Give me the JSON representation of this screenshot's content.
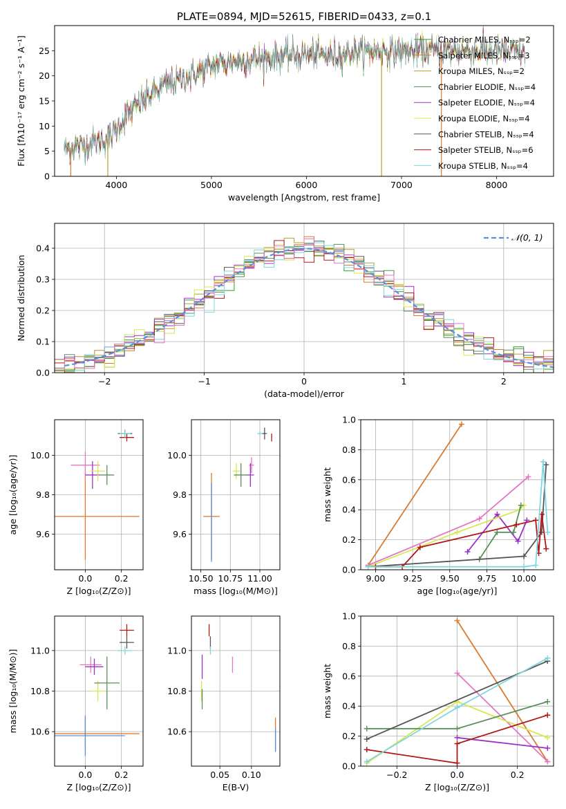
{
  "title": "PLATE=0894, MJD=52615, FIBERID=0433, z=0.1",
  "colors": {
    "Chabrier MILES": "#2ca02c",
    "Salpeter MILES": "#d62728",
    "Kroupa MILES": "#b5a12a",
    "Chabrier ELODIE": "#5a8f5a",
    "Salpeter ELODIE": "#9b30c9",
    "Kroupa ELODIE": "#d6e84e",
    "Chabrier STELIB": "#555555",
    "Salpeter STELIB": "#b01818",
    "Kroupa STELIB": "#7fd6de",
    "pink": "#e377c2",
    "orange": "#d97a30",
    "gauss": "#5b8fdc"
  },
  "chart_data": [
    {
      "type": "line",
      "name": "spectrum",
      "xlabel": "wavelength [Angstrom, rest frame]",
      "ylabel": "Flux [fλ10⁻¹⁷ erg cm⁻² s⁻¹ A⁻¹]",
      "xlim": [
        3350,
        8600
      ],
      "ylim": [
        0,
        30
      ],
      "xticks": [
        "4000",
        "5000",
        "6000",
        "7000",
        "8000"
      ],
      "yticks": [
        "0",
        "5",
        "10",
        "15",
        "20",
        "25"
      ],
      "legend": "upper right",
      "series": [
        {
          "name": "Chabrier MILES, Nₛₛₚ=2"
        },
        {
          "name": "Salpeter MILES, Nₛₛₚ=3"
        },
        {
          "name": "Kroupa MILES, Nₛₛₚ=2"
        },
        {
          "name": "Chabrier ELODIE, Nₛₛₚ=4"
        },
        {
          "name": "Salpeter ELODIE, Nₛₛₚ=4"
        },
        {
          "name": "Kroupa ELODIE, Nₛₛₚ=4"
        },
        {
          "name": "Chabrier STELIB, Nₛₛₚ=4"
        },
        {
          "name": "Salpeter STELIB, Nₛₛₚ=6"
        },
        {
          "name": "Kroupa STELIB, Nₛₛₚ=4"
        }
      ],
      "continuum": [
        [
          3450,
          5.5
        ],
        [
          3600,
          6
        ],
        [
          3850,
          7
        ],
        [
          3950,
          8
        ],
        [
          4100,
          12
        ],
        [
          4300,
          15.5
        ],
        [
          4500,
          18
        ],
        [
          4700,
          19.5
        ],
        [
          4900,
          21
        ],
        [
          5100,
          22.5
        ],
        [
          5300,
          23
        ],
        [
          5600,
          23.5
        ],
        [
          5800,
          24
        ],
        [
          6000,
          24.2
        ],
        [
          6300,
          24
        ],
        [
          6600,
          25
        ],
        [
          6900,
          24.8
        ],
        [
          7200,
          25
        ],
        [
          7600,
          25
        ],
        [
          8000,
          24.8
        ],
        [
          8300,
          24.5
        ]
      ],
      "artifacts": [
        [
          3520,
          0,
          "#d97a30"
        ],
        [
          3910,
          0,
          "#b5a12a"
        ],
        [
          6790,
          0,
          "#b5a12a"
        ],
        [
          7420,
          0,
          "#d97a30"
        ]
      ]
    },
    {
      "type": "histogram",
      "name": "residuals",
      "xlabel": "(data-model)/error",
      "ylabel": "Normed distribution",
      "xlim": [
        -2.5,
        2.5
      ],
      "ylim": [
        0,
        0.48
      ],
      "xticks": [
        "−2",
        "−1",
        "0",
        "1",
        "2"
      ],
      "yticks": [
        "0.0",
        "0.1",
        "0.2",
        "0.3",
        "0.4"
      ],
      "legend": "𝒩(0, 1)",
      "bin_width": 0.1
    },
    {
      "type": "scatter",
      "name": "age-vs-Z",
      "xlabel": "Z [log₁₀(Z/Z⊙)]",
      "ylabel": "age  [log₁₀(age/yr)]",
      "xlim": [
        -0.17,
        0.32
      ],
      "ylim": [
        9.42,
        10.18
      ],
      "xticks": [
        "0.0",
        "0.2"
      ],
      "yticks": [
        "9.6",
        "9.8",
        "10.0"
      ],
      "points": [
        {
          "x": 0.0,
          "y": 9.69,
          "xe": 0.3,
          "ye": 0.22,
          "c": "#d97a30"
        },
        {
          "x": 0.0,
          "y": 9.95,
          "xe": 0.08,
          "ye": 0.07,
          "c": "#e377c2"
        },
        {
          "x": 0.04,
          "y": 9.9,
          "xe": 0.04,
          "ye": 0.07,
          "c": "#9b30c9"
        },
        {
          "x": 0.07,
          "y": 9.92,
          "xe": 0.04,
          "ye": 0.05,
          "c": "#d6e84e"
        },
        {
          "x": 0.12,
          "y": 9.9,
          "xe": 0.04,
          "ye": 0.05,
          "c": "#5a8f5a"
        },
        {
          "x": 0.22,
          "y": 10.11,
          "xe": 0.04,
          "ye": 0.02,
          "c": "#555555"
        },
        {
          "x": 0.23,
          "y": 10.09,
          "xe": 0.04,
          "ye": 0.02,
          "c": "#b01818"
        },
        {
          "x": 0.22,
          "y": 10.11,
          "xe": 0.03,
          "ye": 0.02,
          "c": "#7fd6de"
        }
      ]
    },
    {
      "type": "scatter",
      "name": "age-vs-mass",
      "xlabel": "mass [log₁₀(M/M⊙)]",
      "xlim": [
        10.42,
        11.17
      ],
      "ylim": [
        9.42,
        10.18
      ],
      "xticks": [
        "10.50",
        "10.75",
        "11.00"
      ],
      "yticks": [
        "9.6",
        "9.8",
        "10.0"
      ],
      "points": [
        {
          "x": 10.59,
          "y": 9.69,
          "xe": 0.07,
          "ye": 0.22,
          "c": "#d97a30"
        },
        {
          "x": 10.59,
          "y": 9.66,
          "xe": 0.0,
          "ye": 0.2,
          "c": "#5b8fdc"
        },
        {
          "x": 10.93,
          "y": 9.95,
          "xe": 0.02,
          "ye": 0.04,
          "c": "#e377c2"
        },
        {
          "x": 10.92,
          "y": 9.9,
          "xe": 0.03,
          "ye": 0.06,
          "c": "#9b30c9"
        },
        {
          "x": 10.8,
          "y": 9.92,
          "xe": 0.03,
          "ye": 0.04,
          "c": "#d6e84e"
        },
        {
          "x": 10.84,
          "y": 9.9,
          "xe": 0.06,
          "ye": 0.06,
          "c": "#5a8f5a"
        },
        {
          "x": 11.04,
          "y": 10.11,
          "xe": 0.02,
          "ye": 0.03,
          "c": "#555555"
        },
        {
          "x": 11.1,
          "y": 10.09,
          "xe": 0.0,
          "ye": 0.02,
          "c": "#b01818"
        },
        {
          "x": 11.0,
          "y": 10.11,
          "xe": 0.02,
          "ye": 0.01,
          "c": "#7fd6de"
        }
      ]
    },
    {
      "type": "line",
      "name": "mass-weight-vs-age",
      "xlabel": "age  [log₁₀(age/yr)]",
      "ylabel": "mass weight",
      "xlim": [
        8.9,
        10.2
      ],
      "ylim": [
        0,
        1
      ],
      "xticks": [
        "9.00",
        "9.25",
        "9.50",
        "9.75",
        "10.00"
      ],
      "yticks": [
        "0.0",
        "0.2",
        "0.4",
        "0.6",
        "0.8",
        "1.0"
      ],
      "series": [
        {
          "c": "#d97a30",
          "pts": [
            [
              8.95,
              0.03
            ],
            [
              9.58,
              0.97
            ]
          ]
        },
        {
          "c": "#e377c2",
          "pts": [
            [
              8.95,
              0.03
            ],
            [
              9.7,
              0.34
            ],
            [
              10.03,
              0.62
            ]
          ]
        },
        {
          "c": "#9b30c9",
          "pts": [
            [
              9.62,
              0.12
            ],
            [
              9.82,
              0.37
            ],
            [
              9.96,
              0.19
            ],
            [
              10.02,
              0.33
            ]
          ]
        },
        {
          "c": "#d6e84e",
          "pts": [
            [
              8.95,
              0.02
            ],
            [
              9.55,
              0.25
            ],
            [
              9.97,
              0.4
            ],
            [
              10.0,
              0.43
            ]
          ]
        },
        {
          "c": "#5a8f5a",
          "pts": [
            [
              9.7,
              0.07
            ],
            [
              9.82,
              0.25
            ],
            [
              9.93,
              0.25
            ],
            [
              9.98,
              0.43
            ]
          ]
        },
        {
          "c": "#555555",
          "pts": [
            [
              8.95,
              0.02
            ],
            [
              10.0,
              0.09
            ],
            [
              10.12,
              0.25
            ],
            [
              10.15,
              0.7
            ]
          ]
        },
        {
          "c": "#b01818",
          "pts": [
            [
              9.0,
              0.02
            ],
            [
              9.18,
              0.02
            ],
            [
              9.3,
              0.15
            ],
            [
              9.95,
              0.3
            ],
            [
              10.08,
              0.33
            ],
            [
              10.1,
              0.11
            ],
            [
              10.12,
              0.37
            ],
            [
              10.15,
              0.14
            ]
          ]
        },
        {
          "c": "#7fd6de",
          "pts": [
            [
              8.95,
              0.02
            ],
            [
              10.0,
              0.02
            ],
            [
              10.08,
              0.03
            ],
            [
              10.13,
              0.72
            ],
            [
              10.16,
              0.25
            ]
          ]
        }
      ]
    },
    {
      "type": "scatter",
      "name": "mass-vs-Z",
      "xlabel": "Z [log₁₀(Z/Z⊙)]",
      "ylabel": "mass [log₁₀(M/M⊙)]",
      "xlim": [
        -0.17,
        0.32
      ],
      "ylim": [
        10.43,
        11.17
      ],
      "xticks": [
        "0.0",
        "0.2"
      ],
      "yticks": [
        "10.6",
        "10.8",
        "11.0"
      ],
      "points": [
        {
          "x": 0.0,
          "y": 10.59,
          "xe": 0.3,
          "ye": 0.08,
          "c": "#d97a30"
        },
        {
          "x": 0.0,
          "y": 10.58,
          "xe": 0.22,
          "ye": 0.1,
          "c": "#5b8fdc"
        },
        {
          "x": 0.03,
          "y": 10.93,
          "xe": 0.06,
          "ye": 0.04,
          "c": "#e377c2"
        },
        {
          "x": 0.05,
          "y": 10.92,
          "xe": 0.05,
          "ye": 0.04,
          "c": "#9b30c9"
        },
        {
          "x": 0.07,
          "y": 10.8,
          "xe": 0.04,
          "ye": 0.05,
          "c": "#d6e84e"
        },
        {
          "x": 0.12,
          "y": 10.84,
          "xe": 0.07,
          "ye": 0.13,
          "c": "#5a8f5a"
        },
        {
          "x": 0.23,
          "y": 11.04,
          "xe": 0.04,
          "ye": 0.03,
          "c": "#555555"
        },
        {
          "x": 0.23,
          "y": 11.1,
          "xe": 0.04,
          "ye": 0.03,
          "c": "#b01818"
        },
        {
          "x": 0.22,
          "y": 11.0,
          "xe": 0.04,
          "ye": 0.02,
          "c": "#7fd6de"
        }
      ]
    },
    {
      "type": "scatter",
      "name": "mass-vs-EBV",
      "xlabel": "E(B-V)",
      "xlim": [
        0.005,
        0.145
      ],
      "ylim": [
        10.43,
        11.17
      ],
      "xticks": [
        "0.05",
        "0.10"
      ],
      "yticks": [
        "10.6",
        "10.8",
        "11.0"
      ],
      "points": [
        {
          "x": 0.022,
          "y": 10.92,
          "ye": 0.06,
          "c": "#9b30c9"
        },
        {
          "x": 0.021,
          "y": 10.8,
          "ye": 0.05,
          "c": "#d6e84e"
        },
        {
          "x": 0.022,
          "y": 10.76,
          "ye": 0.05,
          "c": "#5a8f5a"
        },
        {
          "x": 0.033,
          "y": 11.1,
          "ye": 0.03,
          "c": "#b01818"
        },
        {
          "x": 0.035,
          "y": 11.04,
          "ye": 0.03,
          "c": "#555555"
        },
        {
          "x": 0.035,
          "y": 11.0,
          "ye": 0.02,
          "c": "#7fd6de"
        },
        {
          "x": 0.07,
          "y": 10.93,
          "ye": 0.04,
          "c": "#e377c2"
        },
        {
          "x": 0.138,
          "y": 10.59,
          "ye": 0.08,
          "c": "#d97a30"
        },
        {
          "x": 0.138,
          "y": 10.56,
          "ye": 0.06,
          "c": "#5b8fdc"
        }
      ]
    },
    {
      "type": "line",
      "name": "mass-weight-vs-Z",
      "xlabel": "Z [log₁₀(Z/Z⊙)]",
      "ylabel": "mass weight",
      "xlim": [
        -0.32,
        0.32
      ],
      "ylim": [
        0,
        1
      ],
      "xticks": [
        "−0.2",
        "0.0",
        "0.2"
      ],
      "yticks": [
        "0.0",
        "0.2",
        "0.4",
        "0.6",
        "0.8",
        "1.0"
      ],
      "series": [
        {
          "c": "#d97a30",
          "pts": [
            [
              0.0,
              0.97
            ],
            [
              0.3,
              0.03
            ]
          ]
        },
        {
          "c": "#e377c2",
          "pts": [
            [
              0.0,
              0.62
            ],
            [
              0.3,
              0.03
            ]
          ]
        },
        {
          "c": "#9b30c9",
          "pts": [
            [
              0.0,
              0.19
            ],
            [
              0.3,
              0.12
            ]
          ]
        },
        {
          "c": "#d6e84e",
          "pts": [
            [
              -0.3,
              0.02
            ],
            [
              0.0,
              0.43
            ],
            [
              0.3,
              0.19
            ]
          ]
        },
        {
          "c": "#5a8f5a",
          "pts": [
            [
              -0.3,
              0.25
            ],
            [
              0.0,
              0.25
            ],
            [
              0.3,
              0.43
            ]
          ]
        },
        {
          "c": "#555555",
          "pts": [
            [
              -0.3,
              0.18
            ],
            [
              0.3,
              0.7
            ]
          ]
        },
        {
          "c": "#b01818",
          "pts": [
            [
              -0.3,
              0.11
            ],
            [
              0.0,
              0.02
            ],
            [
              0.0,
              0.15
            ],
            [
              0.3,
              0.34
            ]
          ]
        },
        {
          "c": "#7fd6de",
          "pts": [
            [
              -0.3,
              0.03
            ],
            [
              0.0,
              0.39
            ],
            [
              0.3,
              0.72
            ]
          ]
        }
      ]
    }
  ]
}
